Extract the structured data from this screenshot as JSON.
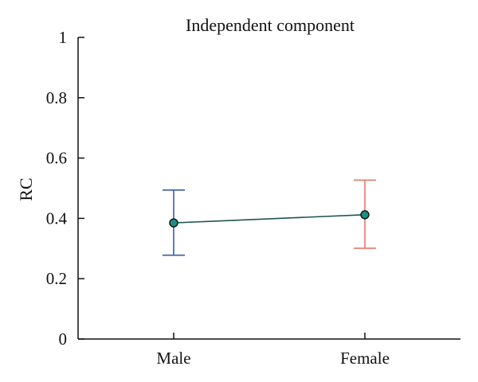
{
  "chart_data": {
    "type": "scatter",
    "title": "Independent component",
    "xlabel": "",
    "ylabel": "RC",
    "categories": [
      "Male",
      "Female"
    ],
    "ylim": [
      0,
      1
    ],
    "yticks": [
      "0",
      "0.2",
      "0.4",
      "0.6",
      "0.8",
      "1"
    ],
    "series": [
      {
        "values": [
          0.385,
          0.412
        ],
        "lower": [
          0.278,
          0.301
        ],
        "upper": [
          0.494,
          0.527
        ]
      }
    ],
    "grid": false,
    "colors": {
      "error_bars": [
        "#3b5bab",
        "#e8766a"
      ],
      "marker_fill": "#1a8f85",
      "marker_edge": "#111111",
      "line": "#1f5550",
      "axis": "#111111"
    }
  }
}
